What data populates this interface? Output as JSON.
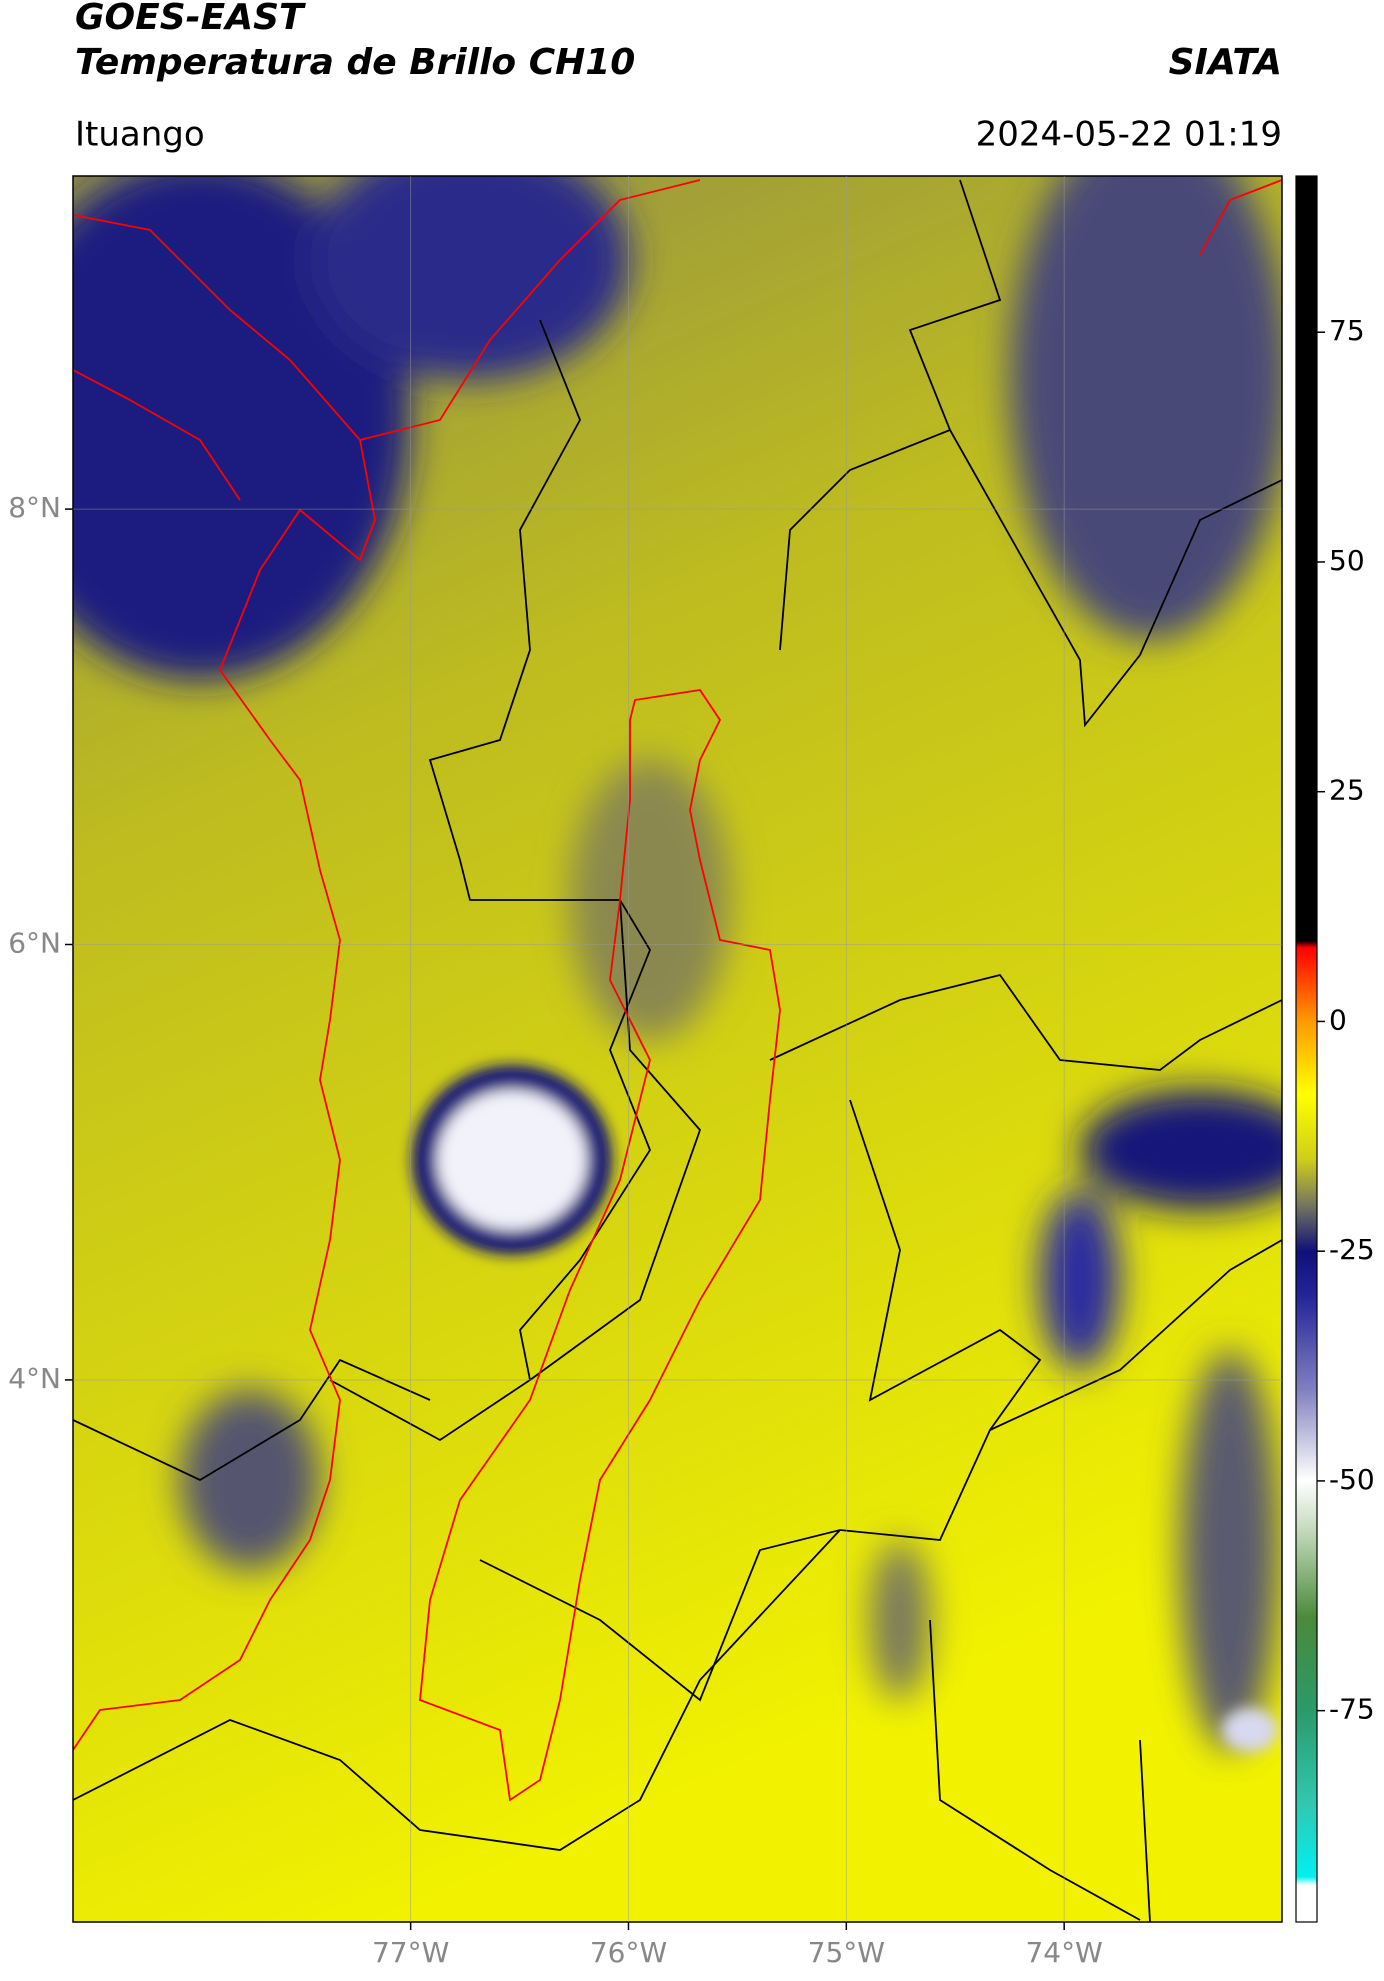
{
  "header": {
    "satellite": "GOES-EAST",
    "product": "Temperatura de Brillo CH10",
    "source": "SIATA",
    "location": "Ituango",
    "datetime": "2024-05-22 01:19"
  },
  "map": {
    "xlim": [
      -78.55,
      -73.0
    ],
    "ylim": [
      1.51,
      9.53
    ],
    "xticks": [
      {
        "value": -77,
        "label": "77°W"
      },
      {
        "value": -76,
        "label": "76°W"
      },
      {
        "value": -75,
        "label": "75°W"
      },
      {
        "value": -74,
        "label": "74°W"
      }
    ],
    "yticks": [
      {
        "value": 4,
        "label": "4°N"
      },
      {
        "value": 6,
        "label": "6°N"
      },
      {
        "value": 8,
        "label": "8°N"
      }
    ],
    "grid": true
  },
  "colorbar": {
    "lim": [
      -98,
      92
    ],
    "ticks": [
      -75,
      -50,
      -25,
      0,
      25,
      50,
      75
    ]
  }
}
